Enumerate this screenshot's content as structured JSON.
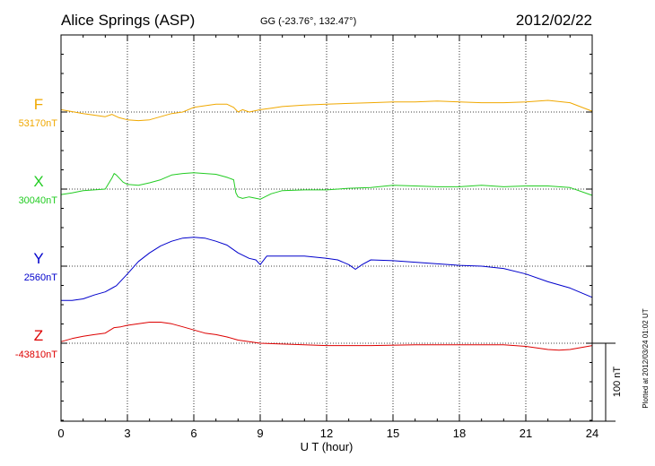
{
  "chart_data": {
    "type": "line",
    "title": "Alice Springs (ASP)",
    "coordinates": "GG (-23.76°, 132.47°)",
    "date": "2012/02/22",
    "xlabel": "U T (hour)",
    "xlim": [
      0,
      24
    ],
    "x_ticks": [
      "0",
      "3",
      "6",
      "9",
      "12",
      "15",
      "18",
      "21",
      "24"
    ],
    "grid": true,
    "scale_bar_label": "100 nT",
    "scale_bar_nT": 100,
    "plotted_note": "Plotted at 2012/03/24 01:02 UT",
    "series": [
      {
        "name": "F",
        "baseline_label": "53170nT",
        "color": "#f0a800",
        "x": [
          0,
          1,
          2,
          2.3,
          2.6,
          3,
          3.5,
          4,
          4.5,
          5,
          5.5,
          6,
          6.5,
          7,
          7.5,
          7.8,
          8,
          8.2,
          8.5,
          9,
          9.5,
          10,
          11,
          12,
          13,
          14,
          15,
          16,
          17,
          18,
          19,
          20,
          21,
          22,
          23,
          24
        ],
        "y": [
          3,
          -2,
          -6,
          -3,
          -7,
          -10,
          -11,
          -10,
          -6,
          -2,
          0,
          6,
          8,
          10,
          10,
          6,
          0,
          3,
          0,
          3,
          5,
          7,
          9,
          10,
          11,
          12,
          13,
          13,
          14,
          13,
          12,
          12,
          13,
          15,
          12,
          1
        ]
      },
      {
        "name": "X",
        "baseline_label": "30040nT",
        "color": "#22cc22",
        "x": [
          0,
          0.5,
          1,
          2,
          2.3,
          2.4,
          2.5,
          2.8,
          3,
          3.5,
          4,
          4.5,
          5,
          5.5,
          6,
          6.5,
          7,
          7.5,
          7.8,
          7.9,
          8,
          8.2,
          8.5,
          9,
          9.5,
          10,
          11,
          12,
          13,
          14,
          15,
          16,
          17,
          18,
          19,
          20,
          21,
          22,
          23,
          24
        ],
        "y": [
          -7,
          -5,
          -2,
          0,
          14,
          20,
          18,
          9,
          6,
          5,
          8,
          12,
          18,
          20,
          21,
          20,
          19,
          15,
          12,
          -5,
          -10,
          -12,
          -10,
          -13,
          -6,
          -2,
          -1,
          -1,
          1,
          2,
          5,
          4,
          3,
          3,
          5,
          3,
          4,
          4,
          2,
          -8
        ]
      },
      {
        "name": "Y",
        "baseline_label": "2560nT",
        "color": "#0000cc",
        "x": [
          0,
          0.5,
          1,
          1.5,
          2,
          2.5,
          3,
          3.5,
          4,
          4.5,
          5,
          5.5,
          6,
          6.5,
          7,
          7.5,
          8,
          8.5,
          8.8,
          9,
          9.3,
          10,
          11,
          12,
          12.5,
          13,
          13.3,
          13.6,
          14,
          15,
          16,
          17,
          18,
          19,
          20,
          21,
          22,
          23,
          24
        ],
        "y": [
          -44,
          -44,
          -42,
          -37,
          -33,
          -25,
          -10,
          6,
          17,
          26,
          32,
          36,
          37,
          36,
          32,
          27,
          17,
          10,
          8,
          2,
          13,
          13,
          13,
          10,
          8,
          2,
          -4,
          2,
          8,
          7,
          5,
          3,
          1,
          0,
          -3,
          -10,
          -20,
          -28,
          -40
        ]
      },
      {
        "name": "Z",
        "baseline_label": "-43810nT",
        "color": "#dd0000",
        "x": [
          0,
          0.5,
          1,
          1.5,
          2,
          2.4,
          2.7,
          3,
          3.5,
          4,
          4.5,
          5,
          5.5,
          6,
          6.5,
          7,
          7.5,
          8,
          9,
          10,
          12,
          14,
          16,
          18,
          20,
          21,
          22,
          22.5,
          23,
          24
        ],
        "y": [
          2,
          6,
          9,
          11,
          13,
          20,
          21,
          23,
          25,
          27,
          27,
          25,
          21,
          17,
          13,
          11,
          8,
          4,
          0,
          -1,
          -3,
          -3,
          -2,
          -2,
          -2,
          -4,
          -8,
          -9,
          -8,
          -3
        ]
      }
    ]
  }
}
